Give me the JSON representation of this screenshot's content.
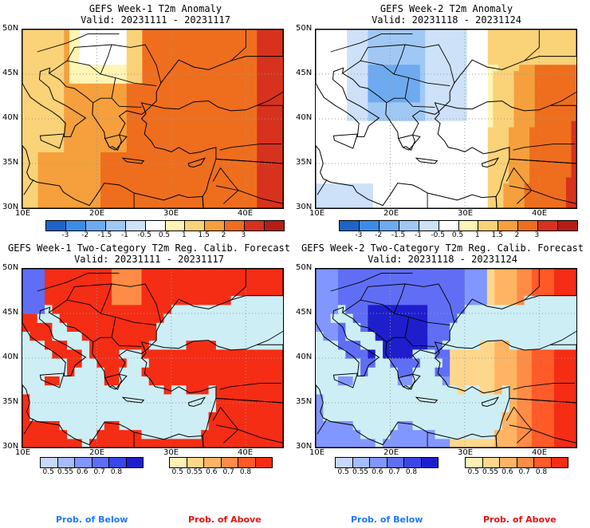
{
  "panels": [
    {
      "title": "GEFS Week-1 T2m Anomaly",
      "valid": "Valid: 20231111 - 20231117",
      "kind": "anomaly",
      "field": "week1_anom"
    },
    {
      "title": "GEFS Week-2 T2m Anomaly",
      "valid": "Valid: 20231118 - 20231124",
      "kind": "anomaly",
      "field": "week2_anom"
    },
    {
      "title": "GEFS Week-1 Two-Category T2m Reg. Calib. Forecast",
      "valid": "Valid: 20231111 - 20231117",
      "kind": "prob",
      "field": "week1_prob"
    },
    {
      "title": "GEFS Week-2 Two-Category T2m Reg. Calib. Forecast",
      "valid": "Valid: 20231118 - 20231124",
      "kind": "prob",
      "field": "week2_prob"
    }
  ],
  "lat_labels": [
    "50N",
    "45N",
    "40N",
    "35N",
    "30N"
  ],
  "lon_labels": [
    "10E",
    "20E",
    "30E",
    "40E"
  ],
  "anomaly_colorbar": {
    "labels": [
      "-3",
      "-2",
      "-1.5",
      "-1",
      "-0.5",
      "0.5",
      "1",
      "1.5",
      "2",
      "3"
    ],
    "colors": [
      "#1e64c8",
      "#3c8ce6",
      "#6eaaf0",
      "#a0c8f5",
      "#cde1f8",
      "#ffffff",
      "#fff5b4",
      "#fad278",
      "#f5a03c",
      "#ee6e1e",
      "#d7321e",
      "#b41e14"
    ]
  },
  "below_colorbar": {
    "labels": [
      "0.5",
      "0.55",
      "0.6",
      "0.7",
      "0.8"
    ],
    "colors": [
      "#c8d7ff",
      "#a5bcff",
      "#8296ff",
      "#5f6ef5",
      "#3c46e6",
      "#1e1ecd"
    ]
  },
  "above_colorbar": {
    "labels": [
      "0.5",
      "0.55",
      "0.6",
      "0.7",
      "0.8"
    ],
    "colors": [
      "#fff0b4",
      "#ffd78c",
      "#ffb464",
      "#ff8c46",
      "#ff5a28",
      "#f52d14"
    ]
  },
  "prob_below_label": "Prob. of Below",
  "prob_above_label": "Prob. of Above",
  "label_colors": {
    "below": "#1e78ff",
    "above": "#e61414"
  },
  "colors": {
    "sea_blue": "#cdeef5",
    "coast": "#000000"
  }
}
